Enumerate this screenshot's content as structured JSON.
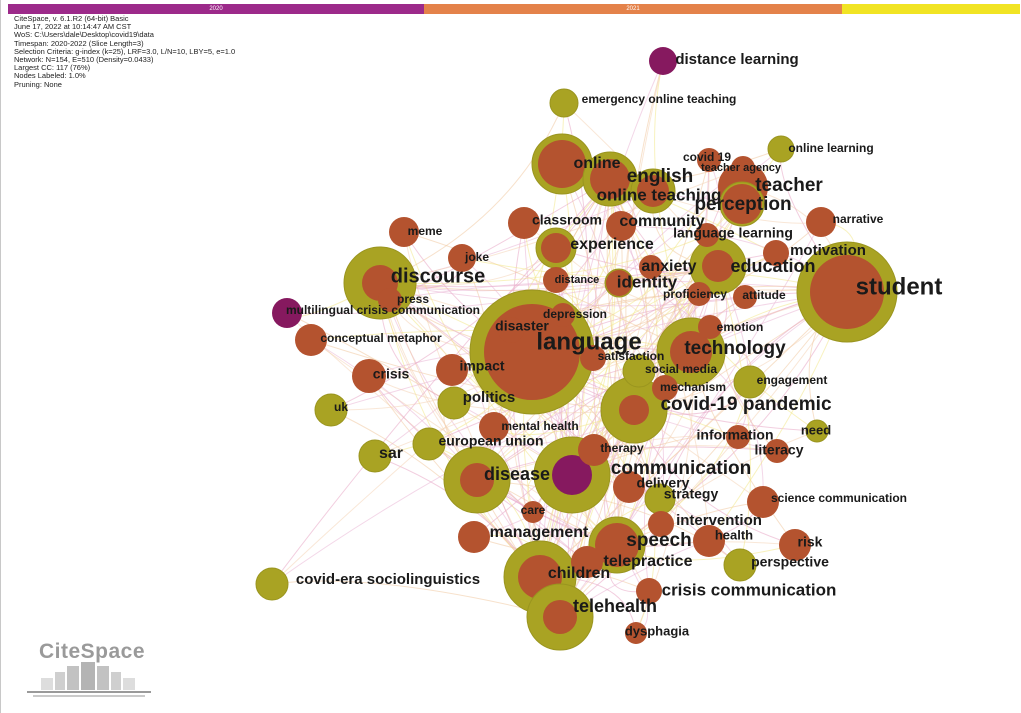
{
  "timeline": {
    "years": [
      {
        "label": "2020",
        "color": "#9c2a8a"
      },
      {
        "label": "2021",
        "color": "#e4824a"
      },
      {
        "label": "",
        "color": "#f1e424"
      }
    ]
  },
  "metadata": [
    "CiteSpace, v. 6.1.R2 (64-bit) Basic",
    "June 17, 2022 at 10:14:47 AM CST",
    "WoS: C:\\Users\\dale\\Desktop\\covid19\\data",
    "Timespan: 2020-2022 (Slice Length=3)",
    "Selection Criteria: g-index (k=25), LRF=3.0, L/N=10, LBY=5, e=1.0",
    "Network: N=154, E=510 (Density=0.0433)",
    "Largest CC: 117 (76%)",
    "Nodes Labeled: 1.0%",
    "Pruning: None"
  ],
  "colors": {
    "ring": "#a9a323",
    "ring_dark": "#9a951f",
    "core": "#b4532f",
    "purple": "#86195f"
  },
  "logo": {
    "text": "CiteSpace"
  },
  "keywords": [
    {
      "label": "language",
      "core": "brown"
    },
    {
      "label": "student",
      "core": "brown"
    },
    {
      "label": "discourse",
      "core": "brown"
    },
    {
      "label": "communication",
      "core": "purple"
    },
    {
      "label": "covid-19 pandemic",
      "core": "brown"
    },
    {
      "label": "technology",
      "core": "brown"
    },
    {
      "label": "english",
      "core": "brown"
    },
    {
      "label": "online",
      "core": "brown"
    },
    {
      "label": "online teaching",
      "core": "brown"
    },
    {
      "label": "teacher",
      "core": "brown"
    },
    {
      "label": "perception",
      "core": "brown"
    },
    {
      "label": "education",
      "core": "brown"
    },
    {
      "label": "speech",
      "core": "brown"
    },
    {
      "label": "disease",
      "core": "brown"
    },
    {
      "label": "children",
      "core": "brown"
    },
    {
      "label": "telehealth",
      "core": "brown"
    },
    {
      "label": "crisis communication",
      "core": "brown"
    },
    {
      "label": "experience",
      "core": "brown"
    },
    {
      "label": "identity",
      "core": "brown"
    },
    {
      "label": "anxiety",
      "core": "brown"
    },
    {
      "label": "motivation",
      "core": "brown"
    },
    {
      "label": "community",
      "core": "brown"
    },
    {
      "label": "classroom",
      "core": "brown"
    },
    {
      "label": "language learning",
      "core": "brown"
    },
    {
      "label": "disaster",
      "core": "brown"
    },
    {
      "label": "management",
      "core": "brown"
    },
    {
      "label": "telepractice",
      "core": "brown"
    },
    {
      "label": "intervention",
      "core": "brown"
    },
    {
      "label": "distance learning",
      "core": "purple"
    },
    {
      "label": "emergency online teaching",
      "core": "none"
    },
    {
      "label": "online learning",
      "core": "none"
    },
    {
      "label": "covid 19",
      "core": "brown"
    },
    {
      "label": "teacher agency",
      "core": "brown"
    },
    {
      "label": "narrative",
      "core": "brown"
    },
    {
      "label": "meme",
      "core": "brown"
    },
    {
      "label": "joke",
      "core": "brown"
    },
    {
      "label": "press",
      "core": "brown"
    },
    {
      "label": "distance",
      "core": "brown"
    },
    {
      "label": "multilingual crisis communication",
      "core": "purple"
    },
    {
      "label": "depression",
      "core": "brown"
    },
    {
      "label": "proficiency",
      "core": "brown"
    },
    {
      "label": "attitude",
      "core": "brown"
    },
    {
      "label": "emotion",
      "core": "brown"
    },
    {
      "label": "conceptual metaphor",
      "core": "brown"
    },
    {
      "label": "satisfaction",
      "core": "brown"
    },
    {
      "label": "social media",
      "core": "none"
    },
    {
      "label": "crisis",
      "core": "brown"
    },
    {
      "label": "impact",
      "core": "brown"
    },
    {
      "label": "mechanism",
      "core": "brown"
    },
    {
      "label": "engagement",
      "core": "none"
    },
    {
      "label": "politics",
      "core": "none"
    },
    {
      "label": "uk",
      "core": "none"
    },
    {
      "label": "mental health",
      "core": "brown"
    },
    {
      "label": "information",
      "core": "brown"
    },
    {
      "label": "need",
      "core": "none"
    },
    {
      "label": "european union",
      "core": "none"
    },
    {
      "label": "literacy",
      "core": "brown"
    },
    {
      "label": "sar",
      "core": "none"
    },
    {
      "label": "therapy",
      "core": "brown"
    },
    {
      "label": "delivery",
      "core": "brown"
    },
    {
      "label": "strategy",
      "core": "none"
    },
    {
      "label": "science communication",
      "core": "brown"
    },
    {
      "label": "care",
      "core": "brown"
    },
    {
      "label": "health",
      "core": "brown"
    },
    {
      "label": "risk",
      "core": "brown"
    },
    {
      "label": "perspective",
      "core": "none"
    },
    {
      "label": "covid-era sociolinguistics",
      "core": "none"
    },
    {
      "label": "dysphagia",
      "core": "brown"
    }
  ]
}
